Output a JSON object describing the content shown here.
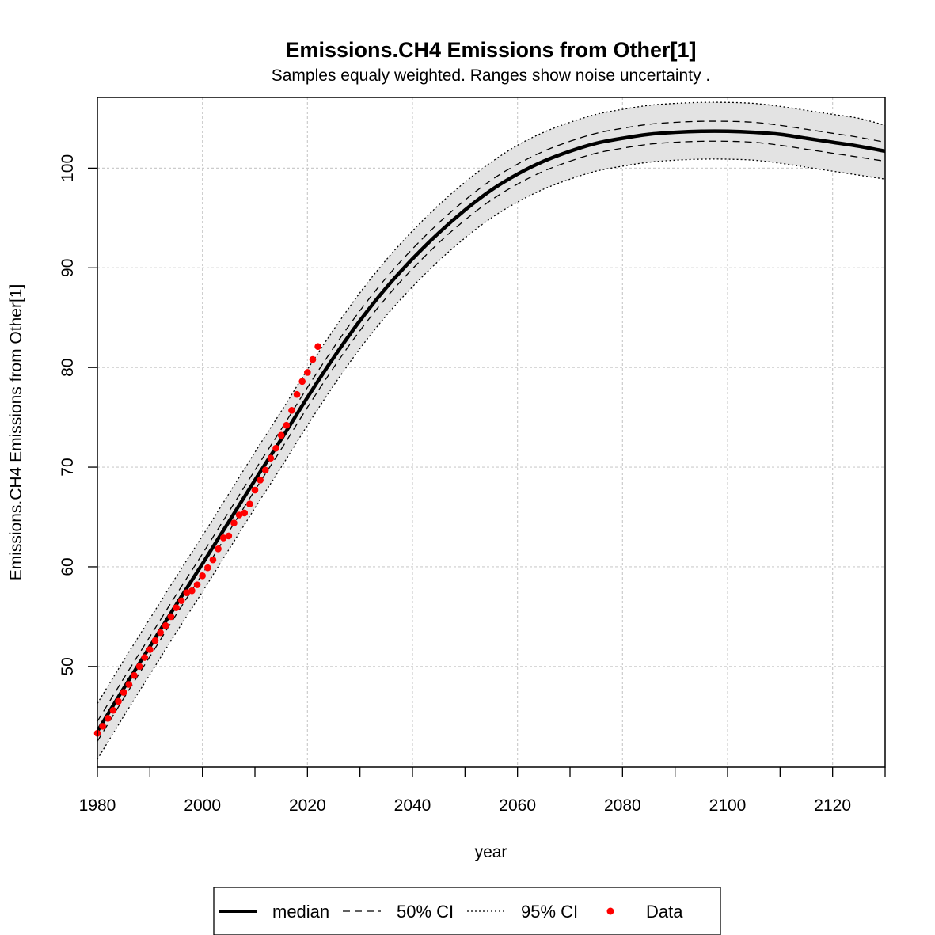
{
  "chart_data": {
    "type": "line",
    "title": "Emissions.CH4 Emissions from Other[1]",
    "subtitle": "Samples equaly weighted. Ranges show  noise uncertainty .",
    "xlabel": "year",
    "ylabel": "Emissions.CH4 Emissions from Other[1]",
    "xlim": [
      1980,
      2130
    ],
    "ylim": [
      39.9,
      107.1
    ],
    "x_ticks": [
      1980,
      1990,
      2000,
      2010,
      2020,
      2030,
      2040,
      2050,
      2060,
      2070,
      2080,
      2090,
      2100,
      2110,
      2120,
      2130
    ],
    "x_tick_labels": [
      "1980",
      "2000",
      "2020",
      "2040",
      "2060",
      "2080",
      "2100",
      "2120"
    ],
    "y_ticks": [
      50,
      60,
      70,
      80,
      90,
      100
    ],
    "y_tick_labels": [
      "50",
      "60",
      "70",
      "80",
      "90",
      "100"
    ],
    "grid": true,
    "legend": {
      "position": "bottom",
      "entries": [
        "median",
        "50% CI",
        "95% CI",
        "Data"
      ]
    },
    "colors": {
      "median": "#000000",
      "ci_band": "#e3e3e3",
      "data": "#ff0000",
      "grid": "#cccccc"
    },
    "x": [
      1980,
      1985,
      1990,
      1995,
      2000,
      2005,
      2010,
      2015,
      2020,
      2025,
      2030,
      2035,
      2040,
      2045,
      2050,
      2055,
      2060,
      2065,
      2070,
      2075,
      2080,
      2085,
      2090,
      2095,
      2100,
      2105,
      2110,
      2115,
      2120,
      2125,
      2130
    ],
    "series": [
      {
        "name": "median",
        "values": [
          43.5,
          47.8,
          52.0,
          56.2,
          60.3,
          64.5,
          68.7,
          72.8,
          77.0,
          81.0,
          84.7,
          88.0,
          90.9,
          93.5,
          95.8,
          97.8,
          99.4,
          100.7,
          101.7,
          102.5,
          103.0,
          103.4,
          103.6,
          103.7,
          103.7,
          103.6,
          103.4,
          103.0,
          102.6,
          102.2,
          101.7
        ]
      },
      {
        "name": "50% CI upper",
        "values": [
          44.5,
          48.8,
          53.0,
          57.2,
          61.3,
          65.5,
          69.7,
          73.8,
          78.0,
          82.0,
          85.7,
          89.0,
          91.9,
          94.5,
          96.8,
          98.8,
          100.4,
          101.7,
          102.7,
          103.5,
          104.0,
          104.4,
          104.6,
          104.7,
          104.7,
          104.6,
          104.3,
          103.9,
          103.5,
          103.1,
          102.6
        ]
      },
      {
        "name": "50% CI lower",
        "values": [
          42.5,
          46.8,
          51.0,
          55.2,
          59.3,
          63.5,
          67.7,
          71.8,
          76.0,
          80.0,
          83.7,
          87.0,
          89.9,
          92.5,
          94.8,
          96.8,
          98.4,
          99.7,
          100.7,
          101.5,
          102.0,
          102.4,
          102.6,
          102.7,
          102.7,
          102.6,
          102.3,
          101.9,
          101.5,
          101.1,
          100.7
        ]
      },
      {
        "name": "95% CI upper",
        "values": [
          46.3,
          50.6,
          54.8,
          59.0,
          63.1,
          67.3,
          71.5,
          75.6,
          79.8,
          83.8,
          87.5,
          90.8,
          93.7,
          96.3,
          98.6,
          100.6,
          102.3,
          103.6,
          104.6,
          105.4,
          105.9,
          106.3,
          106.5,
          106.6,
          106.6,
          106.5,
          106.2,
          105.8,
          105.4,
          105.0,
          104.3
        ]
      },
      {
        "name": "95% CI lower",
        "values": [
          40.7,
          45.0,
          49.2,
          53.4,
          57.5,
          61.7,
          65.9,
          70.0,
          74.2,
          78.2,
          81.9,
          85.2,
          88.1,
          90.7,
          93.0,
          95.0,
          96.6,
          97.9,
          98.9,
          99.7,
          100.2,
          100.6,
          100.8,
          100.9,
          100.9,
          100.8,
          100.5,
          100.1,
          99.7,
          99.3,
          98.9
        ]
      },
      {
        "name": "Data",
        "points": [
          [
            1980,
            43.3
          ],
          [
            1981,
            44.0
          ],
          [
            1982,
            44.8
          ],
          [
            1983,
            45.6
          ],
          [
            1984,
            46.5
          ],
          [
            1985,
            47.4
          ],
          [
            1986,
            48.2
          ],
          [
            1987,
            49.1
          ],
          [
            1988,
            50.0
          ],
          [
            1989,
            50.9
          ],
          [
            1990,
            51.7
          ],
          [
            1991,
            52.6
          ],
          [
            1992,
            53.4
          ],
          [
            1993,
            54.1
          ],
          [
            1994,
            55.0
          ],
          [
            1995,
            55.9
          ],
          [
            1996,
            56.6
          ],
          [
            1997,
            57.4
          ],
          [
            1998,
            57.6
          ],
          [
            1999,
            58.2
          ],
          [
            2000,
            59.1
          ],
          [
            2001,
            59.9
          ],
          [
            2002,
            60.7
          ],
          [
            2003,
            61.8
          ],
          [
            2004,
            62.9
          ],
          [
            2005,
            63.1
          ],
          [
            2006,
            64.4
          ],
          [
            2007,
            65.2
          ],
          [
            2008,
            65.4
          ],
          [
            2009,
            66.3
          ],
          [
            2010,
            67.7
          ],
          [
            2011,
            68.7
          ],
          [
            2012,
            69.7
          ],
          [
            2013,
            70.9
          ],
          [
            2014,
            71.9
          ],
          [
            2015,
            73.2
          ],
          [
            2016,
            74.2
          ],
          [
            2017,
            75.7
          ],
          [
            2018,
            77.3
          ],
          [
            2019,
            78.6
          ],
          [
            2020,
            79.5
          ],
          [
            2021,
            80.8
          ],
          [
            2022,
            82.1
          ]
        ]
      }
    ]
  }
}
